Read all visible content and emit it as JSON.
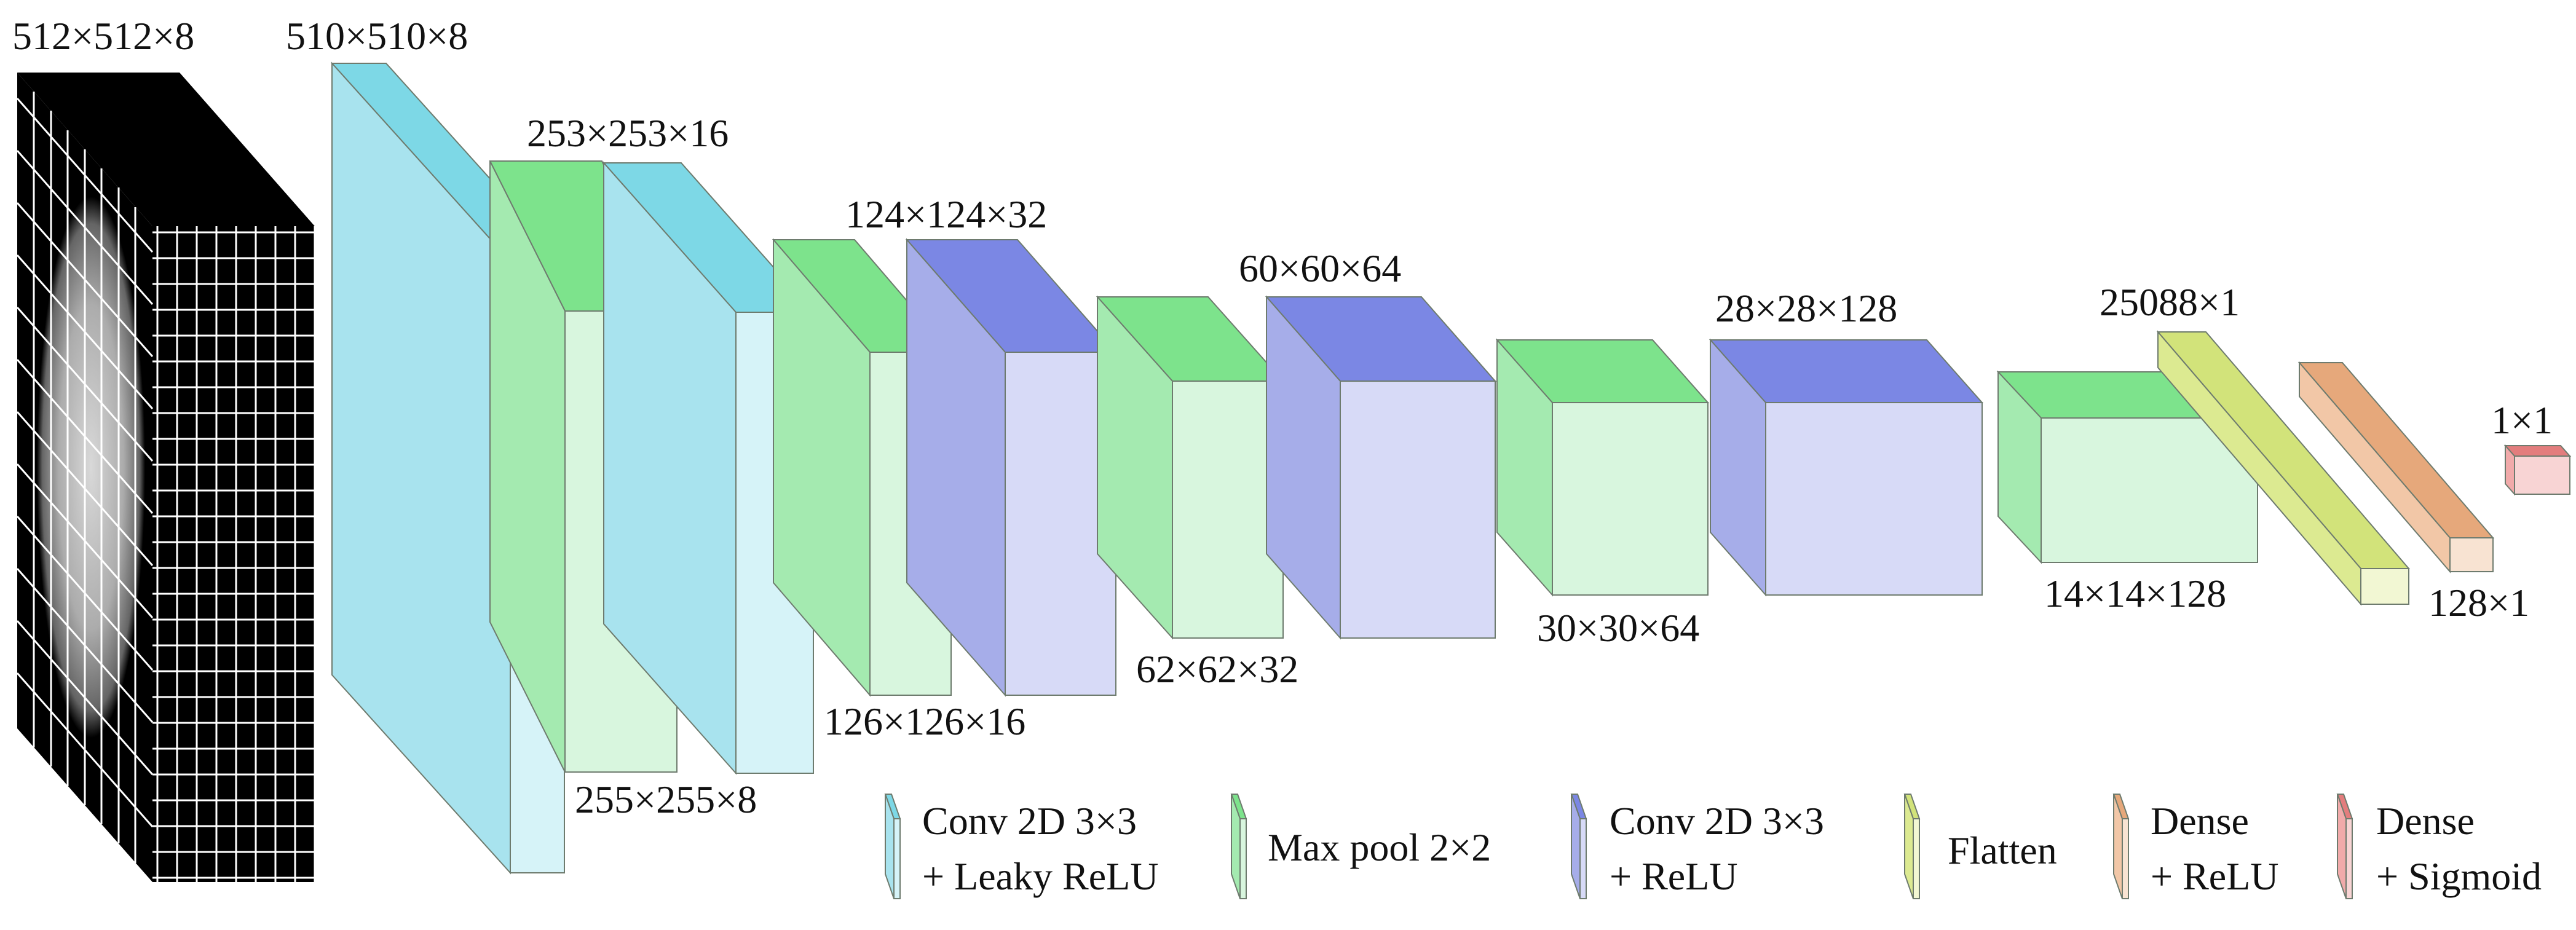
{
  "colors": {
    "conv_leaky": {
      "front": "#d6f3f8",
      "side": "#a8e3ee",
      "top": "#7dd8e6"
    },
    "maxpool": {
      "front": "#d8f6de",
      "side": "#a4eab0",
      "top": "#7de38c"
    },
    "conv_relu": {
      "front": "#d7daf7",
      "side": "#a6ade9",
      "top": "#7b87e4"
    },
    "flatten": {
      "front": "#f2f7d3",
      "side": "#dcea91",
      "top": "#d2e37a"
    },
    "dense_relu": {
      "front": "#f8e3d2",
      "side": "#f2c7a7",
      "top": "#e6a87b"
    },
    "dense_sigmoid": {
      "front": "#f8d4d4",
      "side": "#f1aaaa",
      "top": "#e37d7d"
    }
  },
  "input": {
    "label": "512×512×8",
    "image": "grayscale-slice-grid"
  },
  "layers": [
    {
      "type": "conv_leaky",
      "label": "510×510×8"
    },
    {
      "type": "maxpool",
      "label": "255×255×8"
    },
    {
      "type": "conv_leaky",
      "label": "253×253×16"
    },
    {
      "type": "maxpool",
      "label": "126×126×16"
    },
    {
      "type": "conv_relu",
      "label": "124×124×32"
    },
    {
      "type": "maxpool",
      "label": "62×62×32"
    },
    {
      "type": "conv_relu",
      "label": "60×60×64"
    },
    {
      "type": "maxpool",
      "label": "30×30×64"
    },
    {
      "type": "conv_relu",
      "label": "28×28×128"
    },
    {
      "type": "maxpool",
      "label": "14×14×128"
    },
    {
      "type": "flatten",
      "label": "25088×1"
    },
    {
      "type": "dense_relu",
      "label": "128×1"
    },
    {
      "type": "dense_sigmoid",
      "label": "1×1"
    }
  ],
  "legend": [
    {
      "type": "conv_leaky",
      "line1": "Conv 2D 3×3",
      "line2": "+ Leaky ReLU"
    },
    {
      "type": "maxpool",
      "line1": "Max pool 2×2",
      "line2": ""
    },
    {
      "type": "conv_relu",
      "line1": "Conv 2D 3×3",
      "line2": "+ ReLU"
    },
    {
      "type": "flatten",
      "line1": "Flatten",
      "line2": ""
    },
    {
      "type": "dense_relu",
      "line1": "Dense",
      "line2": "+ ReLU"
    },
    {
      "type": "dense_sigmoid",
      "line1": "Dense",
      "line2": "+ Sigmoid"
    }
  ]
}
